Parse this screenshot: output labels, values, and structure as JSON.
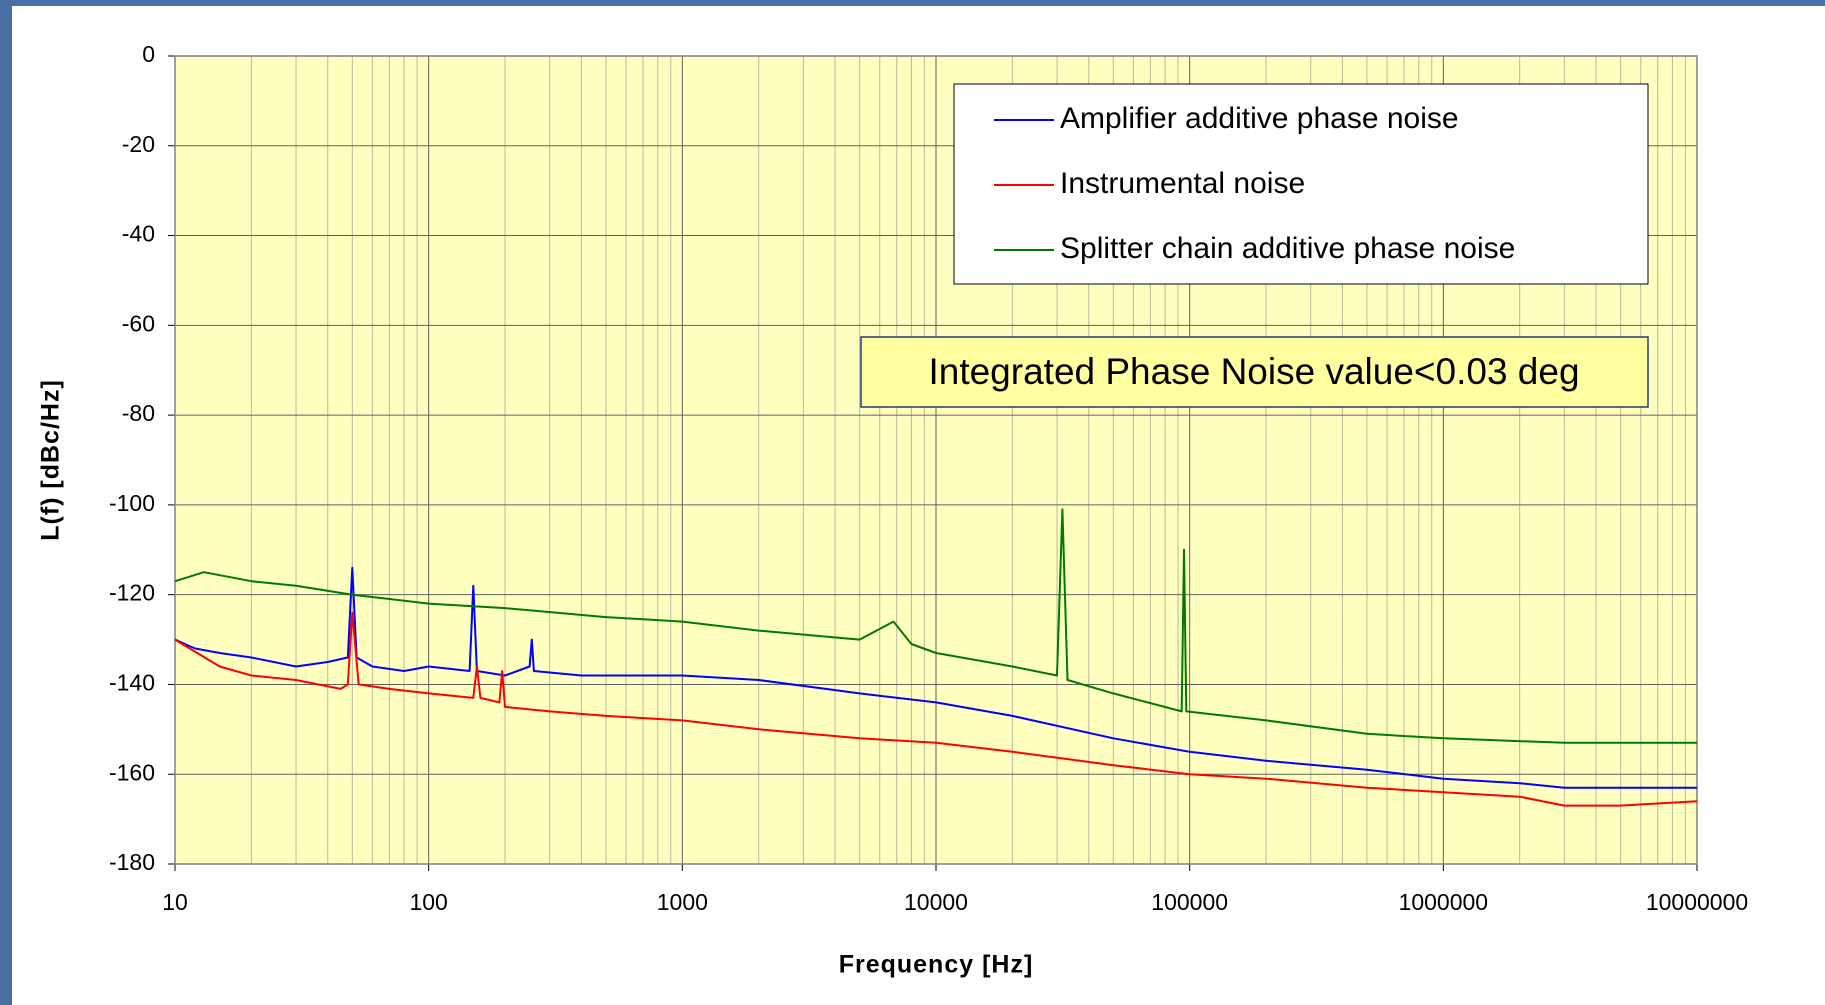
{
  "chart_data": {
    "type": "line",
    "xlabel": "Frequency [Hz]",
    "ylabel": "L(f) [dBc/Hz]",
    "annotation": "Integrated Phase Noise value<0.03 deg",
    "xscale": "log",
    "grid": true,
    "minor_grid": true,
    "legend": "upper right",
    "xlim": [
      10,
      10000000
    ],
    "xticks": [
      10,
      100,
      1000,
      10000,
      100000,
      1000000,
      10000000
    ],
    "ylim": [
      -180,
      0
    ],
    "yticks": [
      -180,
      -160,
      -140,
      -120,
      -100,
      -80,
      -60,
      -40,
      -20,
      0
    ],
    "series": [
      {
        "name": "Amplifier additive phase noise",
        "color": "#0000ff",
        "x": [
          10,
          12,
          15,
          20,
          30,
          40,
          48,
          50,
          52,
          60,
          80,
          100,
          145,
          150,
          155,
          200,
          250,
          255,
          260,
          400,
          600,
          1000,
          2000,
          5000,
          10000,
          20000,
          50000,
          100000,
          200000,
          500000,
          1000000,
          2000000,
          3000000,
          10000000
        ],
        "values": [
          -130,
          -132,
          -133,
          -134,
          -136,
          -135,
          -134,
          -114,
          -134,
          -136,
          -137,
          -136,
          -137,
          -118,
          -137,
          -138,
          -136,
          -130,
          -137,
          -138,
          -138,
          -138,
          -139,
          -142,
          -144,
          -147,
          -152,
          -155,
          -157,
          -159,
          -161,
          -162,
          -163,
          -163
        ]
      },
      {
        "name": "Instrumental noise",
        "color": "#ff0000",
        "x": [
          10,
          15,
          20,
          30,
          45,
          48,
          50,
          53,
          70,
          100,
          150,
          155,
          160,
          190,
          195,
          200,
          300,
          500,
          1000,
          2000,
          5000,
          10000,
          20000,
          50000,
          100000,
          200000,
          500000,
          1000000,
          2000000,
          3000000,
          5000000,
          10000000
        ],
        "values": [
          -130,
          -136,
          -138,
          -139,
          -141,
          -140,
          -124,
          -140,
          -141,
          -142,
          -143,
          -136,
          -143,
          -144,
          -137,
          -145,
          -146,
          -147,
          -148,
          -150,
          -152,
          -153,
          -155,
          -158,
          -160,
          -161,
          -163,
          -164,
          -165,
          -167,
          -167,
          -166
        ]
      },
      {
        "name": "Splitter chain additive phase noise",
        "color": "#007a00",
        "x": [
          10,
          13,
          20,
          30,
          50,
          100,
          200,
          500,
          1000,
          2000,
          5000,
          6800,
          8000,
          10000,
          20000,
          30000,
          31500,
          33000,
          50000,
          93000,
          95000,
          97000,
          200000,
          500000,
          1000000,
          3000000,
          10000000
        ],
        "values": [
          -117,
          -115,
          -117,
          -118,
          -120,
          -122,
          -123,
          -125,
          -126,
          -128,
          -130,
          -126,
          -131,
          -133,
          -136,
          -138,
          -101,
          -139,
          -142,
          -146,
          -110,
          -146,
          -148,
          -151,
          -152,
          -153,
          -153
        ]
      }
    ]
  }
}
